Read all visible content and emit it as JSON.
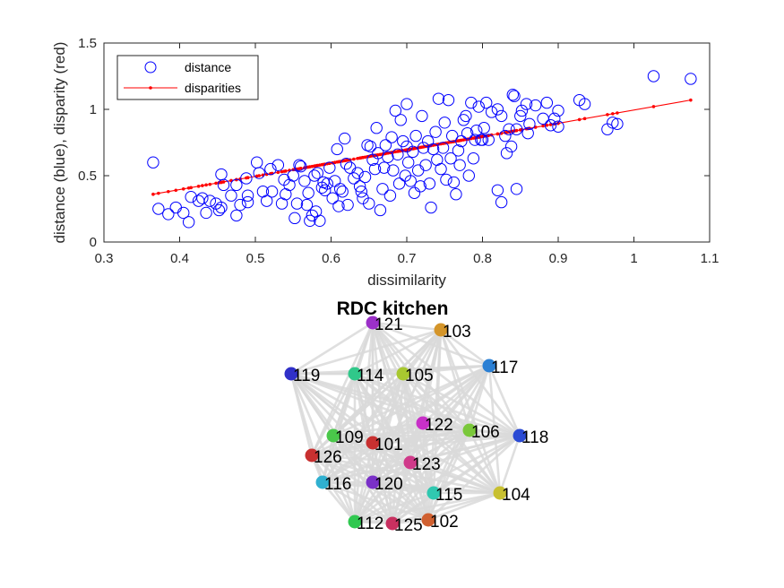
{
  "chart_data": [
    {
      "type": "scatter",
      "title": "",
      "xlabel": "dissimilarity",
      "ylabel": "distance (blue), disparity (red)",
      "xlim": [
        0.3,
        1.1
      ],
      "ylim": [
        0,
        1.5
      ],
      "xticks": [
        "0.3",
        "0.4",
        "0.5",
        "0.6",
        "0.7",
        "0.8",
        "0.9",
        "1",
        "1.1"
      ],
      "yticks": [
        "0",
        "0.5",
        "1",
        "1.5"
      ],
      "grid": false,
      "legend_position": "top-left",
      "series": [
        {
          "name": "distance",
          "style": "circles",
          "color": "#0000ff",
          "points": [
            [
              0.365,
              0.6
            ],
            [
              0.372,
              0.25
            ],
            [
              0.385,
              0.21
            ],
            [
              0.395,
              0.26
            ],
            [
              0.405,
              0.22
            ],
            [
              0.412,
              0.15
            ],
            [
              0.415,
              0.34
            ],
            [
              0.425,
              0.31
            ],
            [
              0.43,
              0.33
            ],
            [
              0.435,
              0.22
            ],
            [
              0.44,
              0.31
            ],
            [
              0.448,
              0.29
            ],
            [
              0.452,
              0.24
            ],
            [
              0.455,
              0.26
            ],
            [
              0.455,
              0.51
            ],
            [
              0.458,
              0.43
            ],
            [
              0.468,
              0.35
            ],
            [
              0.475,
              0.43
            ],
            [
              0.475,
              0.2
            ],
            [
              0.48,
              0.28
            ],
            [
              0.488,
              0.48
            ],
            [
              0.49,
              0.35
            ],
            [
              0.49,
              0.3
            ],
            [
              0.502,
              0.6
            ],
            [
              0.505,
              0.52
            ],
            [
              0.51,
              0.38
            ],
            [
              0.515,
              0.31
            ],
            [
              0.52,
              0.55
            ],
            [
              0.522,
              0.38
            ],
            [
              0.53,
              0.58
            ],
            [
              0.535,
              0.29
            ],
            [
              0.538,
              0.47
            ],
            [
              0.54,
              0.36
            ],
            [
              0.545,
              0.43
            ],
            [
              0.55,
              0.5
            ],
            [
              0.552,
              0.18
            ],
            [
              0.555,
              0.29
            ],
            [
              0.558,
              0.58
            ],
            [
              0.56,
              0.57
            ],
            [
              0.565,
              0.46
            ],
            [
              0.568,
              0.28
            ],
            [
              0.57,
              0.37
            ],
            [
              0.572,
              0.16
            ],
            [
              0.575,
              0.2
            ],
            [
              0.578,
              0.5
            ],
            [
              0.58,
              0.23
            ],
            [
              0.582,
              0.52
            ],
            [
              0.585,
              0.16
            ],
            [
              0.588,
              0.41
            ],
            [
              0.59,
              0.45
            ],
            [
              0.592,
              0.39
            ],
            [
              0.595,
              0.44
            ],
            [
              0.598,
              0.56
            ],
            [
              0.602,
              0.33
            ],
            [
              0.605,
              0.46
            ],
            [
              0.608,
              0.7
            ],
            [
              0.61,
              0.27
            ],
            [
              0.612,
              0.4
            ],
            [
              0.615,
              0.38
            ],
            [
              0.618,
              0.78
            ],
            [
              0.62,
              0.59
            ],
            [
              0.622,
              0.28
            ],
            [
              0.625,
              0.56
            ],
            [
              0.63,
              0.48
            ],
            [
              0.635,
              0.52
            ],
            [
              0.638,
              0.42
            ],
            [
              0.64,
              0.38
            ],
            [
              0.642,
              0.33
            ],
            [
              0.645,
              0.49
            ],
            [
              0.648,
              0.73
            ],
            [
              0.65,
              0.29
            ],
            [
              0.652,
              0.72
            ],
            [
              0.655,
              0.62
            ],
            [
              0.658,
              0.55
            ],
            [
              0.66,
              0.86
            ],
            [
              0.662,
              0.67
            ],
            [
              0.665,
              0.24
            ],
            [
              0.668,
              0.4
            ],
            [
              0.67,
              0.56
            ],
            [
              0.672,
              0.73
            ],
            [
              0.675,
              0.64
            ],
            [
              0.678,
              0.35
            ],
            [
              0.68,
              0.79
            ],
            [
              0.682,
              0.54
            ],
            [
              0.685,
              0.99
            ],
            [
              0.688,
              0.66
            ],
            [
              0.69,
              0.44
            ],
            [
              0.692,
              0.92
            ],
            [
              0.695,
              0.76
            ],
            [
              0.698,
              0.5
            ],
            [
              0.7,
              0.72
            ],
            [
              0.7,
              1.04
            ],
            [
              0.702,
              0.6
            ],
            [
              0.705,
              0.46
            ],
            [
              0.708,
              0.68
            ],
            [
              0.71,
              0.37
            ],
            [
              0.712,
              0.8
            ],
            [
              0.715,
              0.54
            ],
            [
              0.718,
              0.42
            ],
            [
              0.72,
              0.95
            ],
            [
              0.722,
              0.71
            ],
            [
              0.725,
              0.58
            ],
            [
              0.728,
              0.76
            ],
            [
              0.73,
              0.44
            ],
            [
              0.732,
              0.26
            ],
            [
              0.735,
              0.7
            ],
            [
              0.738,
              0.83
            ],
            [
              0.74,
              0.62
            ],
            [
              0.742,
              1.08
            ],
            [
              0.745,
              0.55
            ],
            [
              0.748,
              0.71
            ],
            [
              0.75,
              0.9
            ],
            [
              0.752,
              0.47
            ],
            [
              0.755,
              1.07
            ],
            [
              0.758,
              0.63
            ],
            [
              0.76,
              0.8
            ],
            [
              0.762,
              0.45
            ],
            [
              0.765,
              0.36
            ],
            [
              0.768,
              0.69
            ],
            [
              0.77,
              0.58
            ],
            [
              0.772,
              0.76
            ],
            [
              0.775,
              0.92
            ],
            [
              0.778,
              0.95
            ],
            [
              0.78,
              0.82
            ],
            [
              0.782,
              0.5
            ],
            [
              0.785,
              1.05
            ],
            [
              0.788,
              0.63
            ],
            [
              0.79,
              0.77
            ],
            [
              0.792,
              0.84
            ],
            [
              0.795,
              1.02
            ],
            [
              0.798,
              0.77
            ],
            [
              0.8,
              0.77
            ],
            [
              0.802,
              0.86
            ],
            [
              0.805,
              1.05
            ],
            [
              0.808,
              0.77
            ],
            [
              0.812,
              0.98
            ],
            [
              0.82,
              1.0
            ],
            [
              0.825,
              0.95
            ],
            [
              0.83,
              0.8
            ],
            [
              0.832,
              0.67
            ],
            [
              0.835,
              0.85
            ],
            [
              0.838,
              0.72
            ],
            [
              0.84,
              1.11
            ],
            [
              0.842,
              1.1
            ],
            [
              0.845,
              0.85
            ],
            [
              0.85,
              0.95
            ],
            [
              0.852,
              0.99
            ],
            [
              0.858,
              1.04
            ],
            [
              0.86,
              0.82
            ],
            [
              0.862,
              0.89
            ],
            [
              0.87,
              1.03
            ],
            [
              0.88,
              0.93
            ],
            [
              0.885,
              1.05
            ],
            [
              0.89,
              0.88
            ],
            [
              0.895,
              0.93
            ],
            [
              0.9,
              0.99
            ],
            [
              0.9,
              0.87
            ],
            [
              0.928,
              1.07
            ],
            [
              0.935,
              1.04
            ],
            [
              0.965,
              0.85
            ],
            [
              0.972,
              0.9
            ],
            [
              0.978,
              0.89
            ],
            [
              0.82,
              0.39
            ],
            [
              0.825,
              0.3
            ],
            [
              0.845,
              0.4
            ],
            [
              1.026,
              1.25
            ],
            [
              1.075,
              1.23
            ]
          ]
        },
        {
          "name": "disparities",
          "style": "line-with-dots",
          "color": "#ff0000",
          "x_range": [
            0.365,
            1.075
          ],
          "y_range": [
            0.36,
            1.07
          ]
        }
      ]
    },
    {
      "type": "network",
      "title": "RDC kitchen",
      "edge_color": "#d9d9d9",
      "nodes": [
        {
          "label": "121",
          "color": "#9b30c8"
        },
        {
          "label": "103",
          "color": "#d4952a"
        },
        {
          "label": "117",
          "color": "#2a7fd4"
        },
        {
          "label": "119",
          "color": "#3030c8"
        },
        {
          "label": "114",
          "color": "#30c88a"
        },
        {
          "label": "105",
          "color": "#a8c830"
        },
        {
          "label": "122",
          "color": "#c830c8"
        },
        {
          "label": "106",
          "color": "#7ac83a"
        },
        {
          "label": "118",
          "color": "#2a4ad4"
        },
        {
          "label": "109",
          "color": "#4ac84a"
        },
        {
          "label": "101",
          "color": "#c83030"
        },
        {
          "label": "126",
          "color": "#c83030"
        },
        {
          "label": "123",
          "color": "#d03a8a"
        },
        {
          "label": "116",
          "color": "#30b0d0"
        },
        {
          "label": "120",
          "color": "#7a30c8"
        },
        {
          "label": "115",
          "color": "#30c8b0"
        },
        {
          "label": "104",
          "color": "#c8c030"
        },
        {
          "label": "112",
          "color": "#30c850"
        },
        {
          "label": "125",
          "color": "#c83060"
        },
        {
          "label": "102",
          "color": "#d06030"
        }
      ]
    }
  ]
}
